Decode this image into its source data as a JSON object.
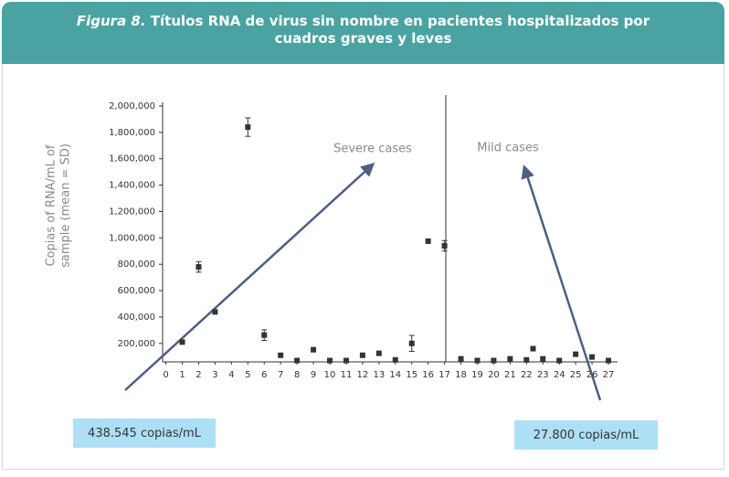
{
  "chart_data": {
    "type": "scatter",
    "figure_label": "Figura 8.",
    "title": "Títulos RNA de virus sin nombre en pacientes hospitalizados por cuadros graves y leves",
    "y_label": [
      "Copias of RNA/mL of",
      "sample (mean = SD)"
    ],
    "annotations": [
      "Severe cases",
      "Mild cases",
      "438.545 copias/mL",
      "27.800 copias/mL"
    ],
    "x": [
      1,
      2,
      3,
      5,
      6,
      7,
      8,
      9,
      10,
      11,
      12,
      13,
      14,
      15,
      16,
      17,
      18,
      19,
      20,
      21,
      22,
      22.4,
      23,
      24,
      25,
      26,
      27
    ],
    "values": [
      210000,
      780000,
      438545,
      1840000,
      263000,
      110000,
      70000,
      152000,
      70000,
      70000,
      110000,
      125000,
      75000,
      200000,
      975000,
      940000,
      83000,
      70000,
      70000,
      83000,
      75000,
      160000,
      83000,
      70000,
      118000,
      97000,
      70000
    ],
    "errors": [
      null,
      40000,
      null,
      70000,
      40000,
      null,
      null,
      null,
      null,
      null,
      null,
      null,
      null,
      60000,
      null,
      40000,
      null,
      null,
      null,
      null,
      null,
      null,
      null,
      null,
      null,
      null,
      null
    ],
    "color": "#333333",
    "xlim": [
      -0.2,
      27.5
    ],
    "xticks": [
      0,
      1,
      2,
      3,
      4,
      5,
      6,
      7,
      8,
      9,
      10,
      11,
      12,
      13,
      14,
      15,
      16,
      17,
      18,
      19,
      20,
      21,
      22,
      23,
      24,
      25,
      26,
      27
    ],
    "ylim": [
      60000,
      2000000
    ],
    "yticks": [
      {
        "value": 200000,
        "label": "200,000"
      },
      {
        "value": 400000,
        "label": "400,000"
      },
      {
        "value": 600000,
        "label": "600,000"
      },
      {
        "value": 800000,
        "label": "800,000"
      },
      {
        "value": 1000000,
        "label": "1,000,000"
      },
      {
        "value": 1200000,
        "label": "1,200,000"
      },
      {
        "value": 1400000,
        "label": "1,400,000"
      },
      {
        "value": 1600000,
        "label": "1,600,000"
      },
      {
        "value": 1800000,
        "label": "1,800,000"
      },
      {
        "value": 2000000,
        "label": "2,000,000"
      }
    ],
    "grid": false
  }
}
